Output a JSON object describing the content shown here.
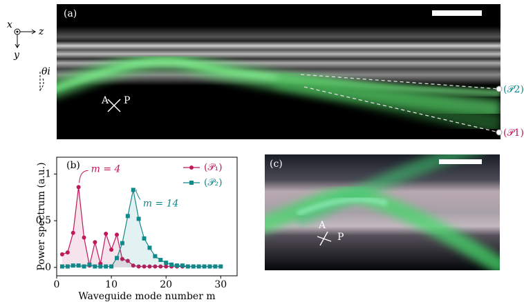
{
  "chart_data": {
    "type": "line",
    "panel_label": "(b)",
    "x_label": "Waveguide mode number m",
    "y_label": "Power spectrum (a.u.)",
    "x": [
      1,
      2,
      3,
      4,
      5,
      6,
      7,
      8,
      9,
      10,
      11,
      12,
      13,
      14,
      15,
      16,
      17,
      18,
      19,
      20,
      21,
      22,
      23,
      24,
      25,
      26,
      27,
      28,
      29,
      30
    ],
    "series": [
      {
        "name": "(𝒫₁)",
        "color": "#c0185a",
        "marker": "circle",
        "values": [
          0.14,
          0.16,
          0.37,
          0.86,
          0.32,
          0.02,
          0.27,
          0.04,
          0.36,
          0.19,
          0.35,
          0.09,
          0.07,
          0.02,
          0.01,
          0.01,
          0.01,
          0.01,
          0.01,
          0.01,
          0.01,
          0.01,
          0.01,
          0.01,
          0.01,
          0.01,
          0.01,
          0.01,
          0.01,
          0.01
        ]
      },
      {
        "name": "(𝒫₂)",
        "color": "#11888a",
        "marker": "square",
        "values": [
          0.01,
          0.01,
          0.02,
          0.02,
          0.01,
          0.03,
          0.01,
          0.01,
          0.01,
          0.01,
          0.1,
          0.26,
          0.55,
          0.83,
          0.52,
          0.31,
          0.21,
          0.12,
          0.08,
          0.05,
          0.03,
          0.02,
          0.02,
          0.01,
          0.01,
          0.01,
          0.01,
          0.01,
          0.01,
          0.01
        ]
      }
    ],
    "annotations": [
      {
        "text": "m = 4",
        "series": 0,
        "index": 3
      },
      {
        "text": "m = 14",
        "series": 1,
        "index": 13
      }
    ],
    "xlim": [
      0,
      33
    ],
    "ylim": [
      -0.09,
      1.18
    ],
    "xticks": [
      0,
      10,
      20,
      30
    ],
    "yticks": [
      0,
      0.5,
      1
    ],
    "grid": false,
    "legend": "upper right"
  },
  "panel_a": {
    "label": "(a)",
    "axis_x": "x",
    "axis_z": "z",
    "axis_y": "y",
    "angle": "θi",
    "analyzer": "A",
    "polarizer": "P",
    "path2": "(𝒫2)",
    "path1": "(𝒫1)"
  },
  "panel_c": {
    "label": "(c)",
    "analyzer": "A",
    "polarizer": "P"
  }
}
